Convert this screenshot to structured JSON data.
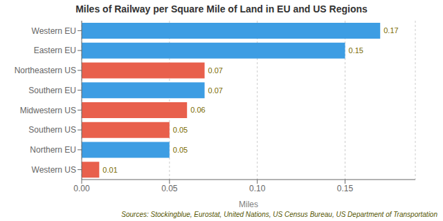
{
  "chart_data": {
    "type": "bar",
    "orientation": "horizontal",
    "title": "Miles of Railway per Square Mile of Land in EU and US Regions",
    "xlabel": "Miles",
    "categories": [
      "Western US",
      "Northern EU",
      "Southern US",
      "Midwestern US",
      "Southern EU",
      "Northeastern US",
      "Eastern EU",
      "Western EU"
    ],
    "values": [
      0.01,
      0.05,
      0.05,
      0.06,
      0.07,
      0.07,
      0.15,
      0.17
    ],
    "colors": [
      "#e8604c",
      "#3d9de3",
      "#e8604c",
      "#e8604c",
      "#3d9de3",
      "#e8604c",
      "#3d9de3",
      "#3d9de3"
    ],
    "xlim": [
      0,
      0.19
    ],
    "xticks": [
      {
        "value": 0,
        "label": "0.00"
      },
      0.05,
      {
        "value": 0.1,
        "label": "0.10"
      },
      0.15
    ],
    "grid": true,
    "data_labels": true,
    "annotation": "Sources: Stockingblue, Eurostat, United Nations, US Census Bureau, US Department of Transportation"
  }
}
